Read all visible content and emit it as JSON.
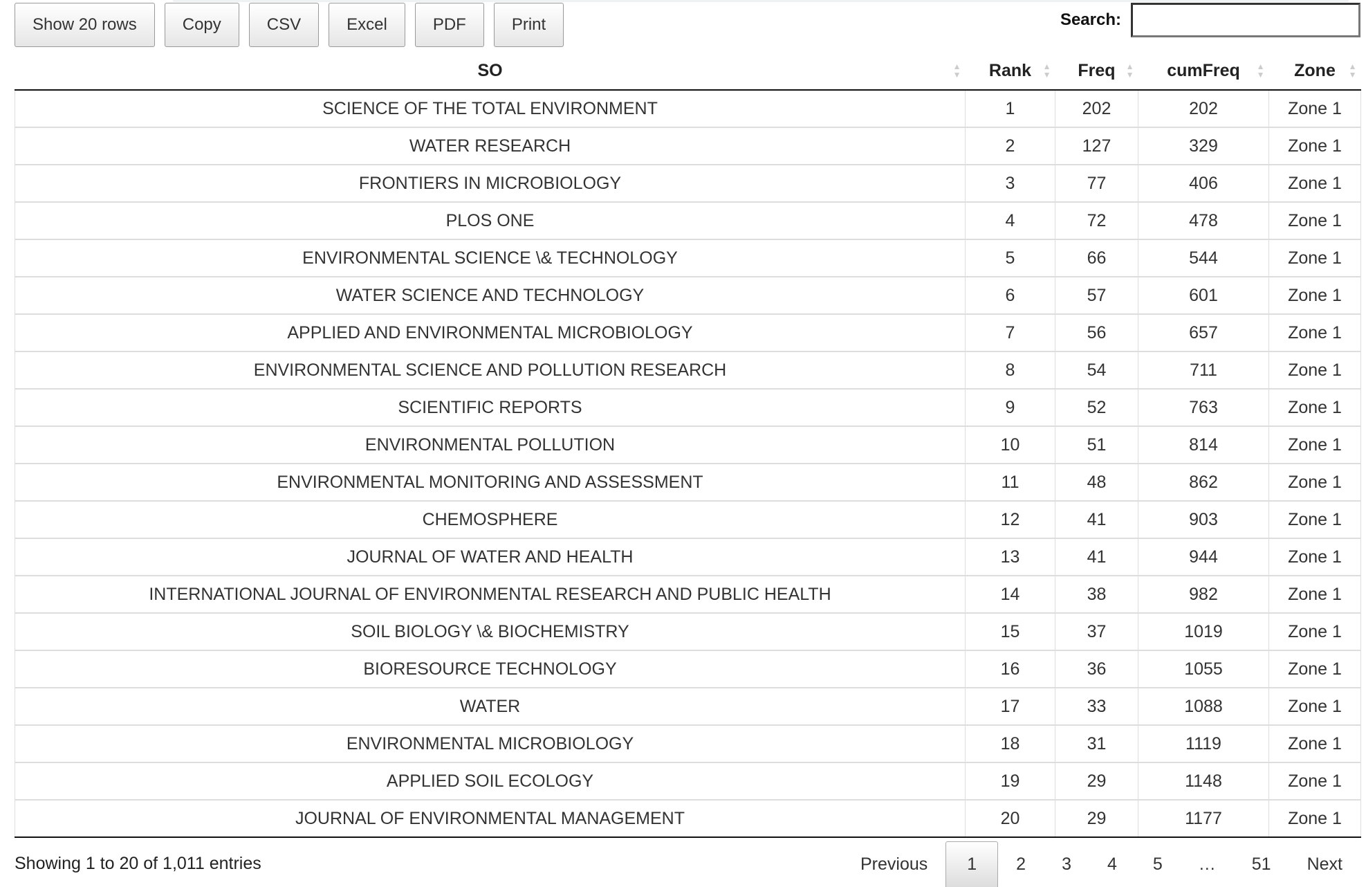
{
  "toolbar": {
    "buttons": [
      "Show 20 rows",
      "Copy",
      "CSV",
      "Excel",
      "PDF",
      "Print"
    ]
  },
  "search": {
    "label": "Search:",
    "value": ""
  },
  "columns": [
    "SO",
    "Rank",
    "Freq",
    "cumFreq",
    "Zone"
  ],
  "rows": [
    [
      "SCIENCE OF THE TOTAL ENVIRONMENT",
      "1",
      "202",
      "202",
      "Zone 1"
    ],
    [
      "WATER RESEARCH",
      "2",
      "127",
      "329",
      "Zone 1"
    ],
    [
      "FRONTIERS IN MICROBIOLOGY",
      "3",
      "77",
      "406",
      "Zone 1"
    ],
    [
      "PLOS ONE",
      "4",
      "72",
      "478",
      "Zone 1"
    ],
    [
      "ENVIRONMENTAL SCIENCE \\& TECHNOLOGY",
      "5",
      "66",
      "544",
      "Zone 1"
    ],
    [
      "WATER SCIENCE AND TECHNOLOGY",
      "6",
      "57",
      "601",
      "Zone 1"
    ],
    [
      "APPLIED AND ENVIRONMENTAL MICROBIOLOGY",
      "7",
      "56",
      "657",
      "Zone 1"
    ],
    [
      "ENVIRONMENTAL SCIENCE AND POLLUTION RESEARCH",
      "8",
      "54",
      "711",
      "Zone 1"
    ],
    [
      "SCIENTIFIC REPORTS",
      "9",
      "52",
      "763",
      "Zone 1"
    ],
    [
      "ENVIRONMENTAL POLLUTION",
      "10",
      "51",
      "814",
      "Zone 1"
    ],
    [
      "ENVIRONMENTAL MONITORING AND ASSESSMENT",
      "11",
      "48",
      "862",
      "Zone 1"
    ],
    [
      "CHEMOSPHERE",
      "12",
      "41",
      "903",
      "Zone 1"
    ],
    [
      "JOURNAL OF WATER AND HEALTH",
      "13",
      "41",
      "944",
      "Zone 1"
    ],
    [
      "INTERNATIONAL JOURNAL OF ENVIRONMENTAL RESEARCH AND PUBLIC HEALTH",
      "14",
      "38",
      "982",
      "Zone 1"
    ],
    [
      "SOIL BIOLOGY \\& BIOCHEMISTRY",
      "15",
      "37",
      "1019",
      "Zone 1"
    ],
    [
      "BIORESOURCE TECHNOLOGY",
      "16",
      "36",
      "1055",
      "Zone 1"
    ],
    [
      "WATER",
      "17",
      "33",
      "1088",
      "Zone 1"
    ],
    [
      "ENVIRONMENTAL MICROBIOLOGY",
      "18",
      "31",
      "1119",
      "Zone 1"
    ],
    [
      "APPLIED SOIL ECOLOGY",
      "19",
      "29",
      "1148",
      "Zone 1"
    ],
    [
      "JOURNAL OF ENVIRONMENTAL MANAGEMENT",
      "20",
      "29",
      "1177",
      "Zone 1"
    ]
  ],
  "info": "Showing 1 to 20 of 1,011 entries",
  "pagination": {
    "items": [
      "Previous",
      "1",
      "2",
      "3",
      "4",
      "5",
      "…",
      "51",
      "Next"
    ],
    "current": "1"
  }
}
